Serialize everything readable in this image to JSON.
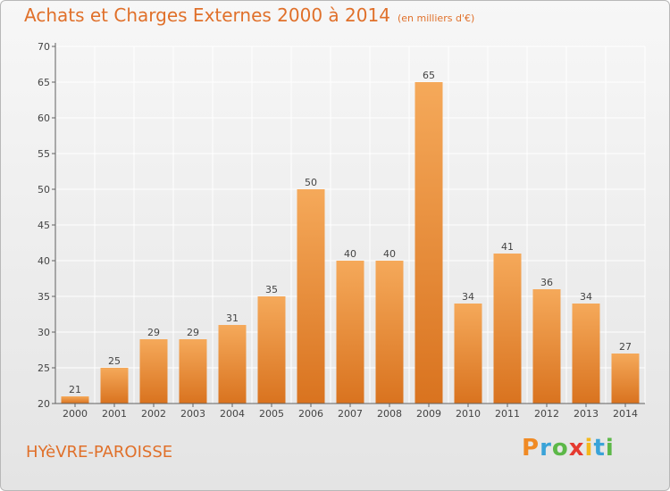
{
  "title": "Achats et Charges Externes 2000 à 2014",
  "unit": "(en milliers d'€)",
  "town": "HYèVRE-PAROISSE",
  "logo": {
    "letters": [
      "P",
      "r",
      "o",
      "x",
      "i",
      "t",
      "i"
    ],
    "colors": [
      "#f08a24",
      "#3aa3d8",
      "#5cb848",
      "#e53a2f",
      "#f4b81c",
      "#3aa3d8",
      "#5cb848"
    ]
  },
  "colors": {
    "title": "#e0702a",
    "bar_top": "#f5a95a",
    "bar_bottom": "#d9731f",
    "grid": "#ffffff",
    "axis": "#606060"
  },
  "chart_data": {
    "type": "bar",
    "categories": [
      "2000",
      "2001",
      "2002",
      "2003",
      "2004",
      "2005",
      "2006",
      "2007",
      "2008",
      "2009",
      "2010",
      "2011",
      "2012",
      "2013",
      "2014"
    ],
    "values": [
      21,
      25,
      29,
      29,
      31,
      35,
      50,
      40,
      40,
      65,
      34,
      41,
      36,
      34,
      27
    ],
    "ylim": [
      20,
      70
    ],
    "yticks": [
      20,
      25,
      30,
      35,
      40,
      45,
      50,
      55,
      60,
      65,
      70
    ],
    "grid": true,
    "data_labels": true
  }
}
